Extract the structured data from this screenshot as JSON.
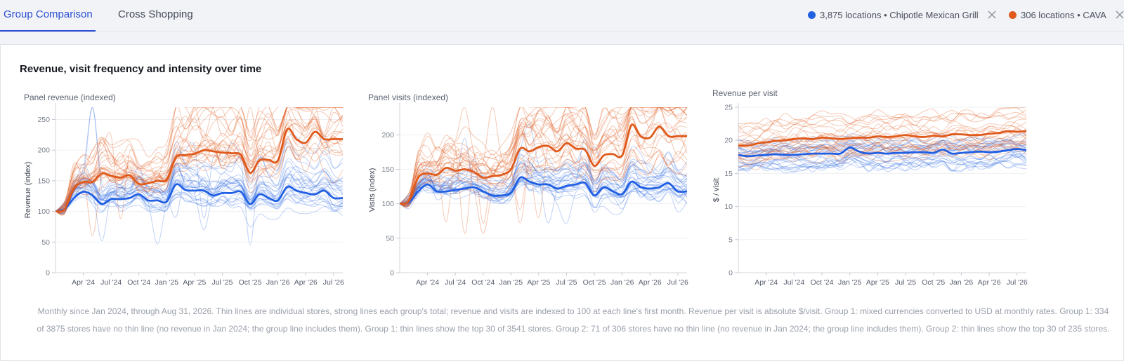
{
  "tabs": [
    {
      "label": "Group Comparison",
      "active": true
    },
    {
      "label": "Cross Shopping",
      "active": false
    }
  ],
  "groups": [
    {
      "label": "3,875 locations • Chipotle Mexican Grill",
      "color": "#2160e3",
      "icon": "close-icon"
    },
    {
      "label": "306 locations • CAVA",
      "color": "#e05a1c",
      "icon": "close-icon"
    }
  ],
  "panel": {
    "title": "Revenue, visit frequency and intensity over time",
    "footnote": "Monthly since Jan 2024, through Aug 31, 2026. Thin lines are individual stores, strong lines each group's total; revenue and visits are indexed to 100 at each line's first month. Revenue per visit is absolute $/visit. Group 1: mixed currencies converted to USD at monthly rates. Group 1: 334 of 3875 stores have no thin line (no revenue in Jan 2024; the group line includes them). Group 1: thin lines show the top 30 of 3541 stores. Group 2: 71 of 306 stores have no thin line (no revenue in Jan 2024; the group line includes them). Group 2: thin lines show the top 30 of 235 stores."
  },
  "chart_data": [
    {
      "type": "line",
      "title": "Panel revenue (indexed)",
      "ylabel": "Revenue (index)",
      "xlabel": "",
      "ylim": [
        0,
        270
      ],
      "yticks": [
        0,
        50,
        100,
        150,
        200,
        250
      ],
      "x": [
        "Jan '24",
        "Feb '24",
        "Mar '24",
        "Apr '24",
        "May '24",
        "Jun '24",
        "Jul '24",
        "Aug '24",
        "Sep '24",
        "Oct '24",
        "Nov '24",
        "Dec '24",
        "Jan '25",
        "Feb '25",
        "Mar '25",
        "Apr '25",
        "May '25",
        "Jun '25",
        "Jul '25",
        "Aug '25",
        "Sep '25",
        "Oct '25",
        "Nov '25",
        "Dec '25",
        "Jan '26",
        "Feb '26",
        "Mar '26",
        "Apr '26",
        "May '26",
        "Jun '26",
        "Jul '26",
        "Aug '26"
      ],
      "xtick_labels": [
        "Apr '24",
        "Jul '24",
        "Oct '24",
        "Jan '25",
        "Apr '25",
        "Jul '25",
        "Oct '25",
        "Jan '26",
        "Apr '26",
        "Jul '26"
      ],
      "series": [
        {
          "name": "Chipotle Mexican Grill",
          "color": "#2160e3",
          "values": [
            100,
            104,
            122,
            132,
            126,
            112,
            120,
            120,
            122,
            128,
            118,
            118,
            116,
            144,
            135,
            134,
            134,
            126,
            130,
            130,
            132,
            112,
            128,
            122,
            118,
            140,
            134,
            130,
            128,
            134,
            122,
            122
          ]
        },
        {
          "name": "CAVA",
          "color": "#e05a1c",
          "values": [
            100,
            104,
            138,
            148,
            148,
            162,
            158,
            155,
            159,
            145,
            146,
            150,
            152,
            188,
            192,
            194,
            200,
            198,
            196,
            195,
            192,
            163,
            183,
            184,
            183,
            234,
            218,
            212,
            230,
            218,
            218,
            218
          ]
        }
      ]
    },
    {
      "type": "line",
      "title": "Panel visits (indexed)",
      "ylabel": "Visits (index)",
      "xlabel": "",
      "ylim": [
        0,
        240
      ],
      "yticks": [
        0,
        50,
        100,
        150,
        200
      ],
      "x": [
        "Jan '24",
        "Feb '24",
        "Mar '24",
        "Apr '24",
        "May '24",
        "Jun '24",
        "Jul '24",
        "Aug '24",
        "Sep '24",
        "Oct '24",
        "Nov '24",
        "Dec '24",
        "Jan '25",
        "Feb '25",
        "Mar '25",
        "Apr '25",
        "May '25",
        "Jun '25",
        "Jul '25",
        "Aug '25",
        "Sep '25",
        "Oct '25",
        "Nov '25",
        "Dec '25",
        "Jan '26",
        "Feb '26",
        "Mar '26",
        "Apr '26",
        "May '26",
        "Jun '26",
        "Jul '26",
        "Aug '26"
      ],
      "xtick_labels": [
        "Apr '24",
        "Jul '24",
        "Oct '24",
        "Jan '25",
        "Apr '25",
        "Jul '25",
        "Oct '25",
        "Jan '26",
        "Apr '26",
        "Jul '26"
      ],
      "series": [
        {
          "name": "Chipotle Mexican Grill",
          "color": "#2160e3",
          "values": [
            100,
            102,
            118,
            128,
            118,
            118,
            120,
            122,
            124,
            118,
            112,
            112,
            116,
            138,
            132,
            128,
            128,
            122,
            126,
            128,
            130,
            112,
            124,
            118,
            114,
            132,
            124,
            122,
            124,
            130,
            118,
            118
          ]
        },
        {
          "name": "CAVA",
          "color": "#e05a1c",
          "values": [
            100,
            104,
            138,
            144,
            142,
            152,
            148,
            150,
            146,
            138,
            140,
            142,
            150,
            180,
            176,
            182,
            184,
            176,
            188,
            180,
            178,
            155,
            170,
            172,
            170,
            214,
            198,
            196,
            212,
            198,
            198,
            198
          ]
        }
      ]
    },
    {
      "type": "line",
      "title": "Revenue per visit",
      "ylabel": "$ / visit",
      "xlabel": "",
      "ylim": [
        0,
        25
      ],
      "yticks": [
        0,
        5,
        10,
        15,
        20,
        25
      ],
      "x": [
        "Jan '24",
        "Feb '24",
        "Mar '24",
        "Apr '24",
        "May '24",
        "Jun '24",
        "Jul '24",
        "Aug '24",
        "Sep '24",
        "Oct '24",
        "Nov '24",
        "Dec '24",
        "Jan '25",
        "Feb '25",
        "Mar '25",
        "Apr '25",
        "May '25",
        "Jun '25",
        "Jul '25",
        "Aug '25",
        "Sep '25",
        "Oct '25",
        "Nov '25",
        "Dec '25",
        "Jan '26",
        "Feb '26",
        "Mar '26",
        "Apr '26",
        "May '26",
        "Jun '26",
        "Jul '26",
        "Aug '26"
      ],
      "xtick_labels": [
        "Apr '24",
        "Jul '24",
        "Oct '24",
        "Jan '25",
        "Apr '25",
        "Jul '25",
        "Oct '25",
        "Jan '26",
        "Apr '26",
        "Jul '26"
      ],
      "series": [
        {
          "name": "Chipotle Mexican Grill",
          "color": "#2160e3",
          "values": [
            17.8,
            17.6,
            17.7,
            17.8,
            17.9,
            17.8,
            17.8,
            17.9,
            18.0,
            18.0,
            18.0,
            18.0,
            18.9,
            18.3,
            18.0,
            18.1,
            18.0,
            18.1,
            18.1,
            18.2,
            18.2,
            18.1,
            18.6,
            18.0,
            18.1,
            18.2,
            18.3,
            18.2,
            18.3,
            18.5,
            18.7,
            18.5
          ]
        },
        {
          "name": "CAVA",
          "color": "#e05a1c",
          "values": [
            19.2,
            19.2,
            19.5,
            19.7,
            19.9,
            20.0,
            20.2,
            20.3,
            20.2,
            20.4,
            20.3,
            20.2,
            20.3,
            20.4,
            20.4,
            20.6,
            20.5,
            20.6,
            20.8,
            20.6,
            20.5,
            20.7,
            20.6,
            20.9,
            20.9,
            20.8,
            20.8,
            21.0,
            21.1,
            21.4,
            21.3,
            21.4
          ]
        }
      ]
    }
  ]
}
